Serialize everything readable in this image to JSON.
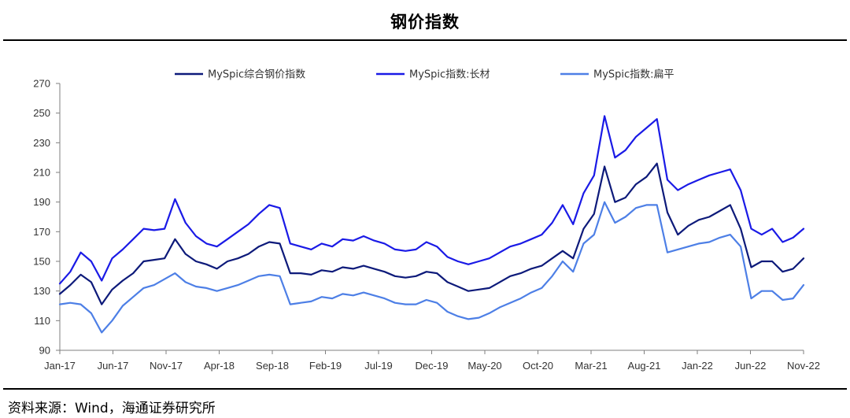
{
  "header": {
    "title": "钢价指数"
  },
  "footer": {
    "source": "资料来源：Wind，海通证券研究所"
  },
  "chart_data": {
    "type": "line",
    "title": "钢价指数",
    "xlabel": "",
    "ylabel": "",
    "ylim": [
      90,
      270
    ],
    "yticks": [
      90,
      110,
      130,
      150,
      170,
      190,
      210,
      230,
      250,
      270
    ],
    "xlim": [
      "2017-01",
      "2022-12"
    ],
    "xtick_labels": [
      "Jan-17",
      "Jun-17",
      "Nov-17",
      "Apr-18",
      "Sep-18",
      "Feb-19",
      "Jul-19",
      "Dec-19",
      "May-20",
      "Oct-20",
      "Mar-21",
      "Aug-21",
      "Jan-22",
      "Jun-22",
      "Nov-22"
    ],
    "grid": false,
    "legend": "top",
    "x": [
      "2017-01",
      "2017-02",
      "2017-03",
      "2017-04",
      "2017-05",
      "2017-06",
      "2017-07",
      "2017-08",
      "2017-09",
      "2017-10",
      "2017-11",
      "2017-12",
      "2018-01",
      "2018-02",
      "2018-03",
      "2018-04",
      "2018-05",
      "2018-06",
      "2018-07",
      "2018-08",
      "2018-09",
      "2018-10",
      "2018-11",
      "2018-12",
      "2019-01",
      "2019-02",
      "2019-03",
      "2019-04",
      "2019-05",
      "2019-06",
      "2019-07",
      "2019-08",
      "2019-09",
      "2019-10",
      "2019-11",
      "2019-12",
      "2020-01",
      "2020-02",
      "2020-03",
      "2020-04",
      "2020-05",
      "2020-06",
      "2020-07",
      "2020-08",
      "2020-09",
      "2020-10",
      "2020-11",
      "2020-12",
      "2021-01",
      "2021-02",
      "2021-03",
      "2021-04",
      "2021-05",
      "2021-06",
      "2021-07",
      "2021-08",
      "2021-09",
      "2021-10",
      "2021-11",
      "2021-12",
      "2022-01",
      "2022-02",
      "2022-03",
      "2022-04",
      "2022-05",
      "2022-06",
      "2022-07",
      "2022-08",
      "2022-09",
      "2022-10",
      "2022-11",
      "2022-12"
    ],
    "series": [
      {
        "name": "MySpic综合钢价指数",
        "color": "#0d1a7a",
        "values": [
          128,
          134,
          141,
          136,
          121,
          131,
          137,
          142,
          150,
          151,
          152,
          165,
          155,
          150,
          148,
          145,
          150,
          152,
          155,
          160,
          163,
          162,
          142,
          142,
          141,
          144,
          143,
          146,
          145,
          147,
          145,
          143,
          140,
          139,
          140,
          143,
          142,
          136,
          133,
          130,
          131,
          132,
          136,
          140,
          142,
          145,
          147,
          152,
          157,
          152,
          172,
          182,
          214,
          190,
          193,
          202,
          207,
          216,
          183,
          168,
          174,
          178,
          180,
          184,
          188,
          172,
          146,
          150,
          150,
          143,
          145,
          152
        ]
      },
      {
        "name": "MySpic指数:长材",
        "color": "#1a1ae6",
        "values": [
          135,
          143,
          156,
          150,
          137,
          152,
          158,
          165,
          172,
          171,
          172,
          192,
          176,
          167,
          162,
          160,
          165,
          170,
          175,
          182,
          188,
          186,
          162,
          160,
          158,
          162,
          160,
          165,
          164,
          167,
          164,
          162,
          158,
          157,
          158,
          163,
          160,
          153,
          150,
          148,
          150,
          152,
          156,
          160,
          162,
          165,
          168,
          176,
          188,
          175,
          196,
          208,
          248,
          220,
          225,
          234,
          240,
          246,
          205,
          198,
          202,
          205,
          208,
          210,
          212,
          198,
          172,
          168,
          172,
          163,
          166,
          172
        ]
      },
      {
        "name": "MySpic指数:扁平",
        "color": "#4d7fe6",
        "values": [
          121,
          122,
          121,
          115,
          102,
          110,
          120,
          126,
          132,
          134,
          138,
          142,
          136,
          133,
          132,
          130,
          132,
          134,
          137,
          140,
          141,
          140,
          121,
          122,
          123,
          126,
          125,
          128,
          127,
          129,
          127,
          125,
          122,
          121,
          121,
          124,
          122,
          116,
          113,
          111,
          112,
          115,
          119,
          122,
          125,
          129,
          132,
          140,
          150,
          143,
          162,
          168,
          190,
          176,
          180,
          186,
          188,
          188,
          156,
          158,
          160,
          162,
          163,
          166,
          168,
          160,
          125,
          130,
          130,
          124,
          125,
          134
        ]
      }
    ]
  }
}
